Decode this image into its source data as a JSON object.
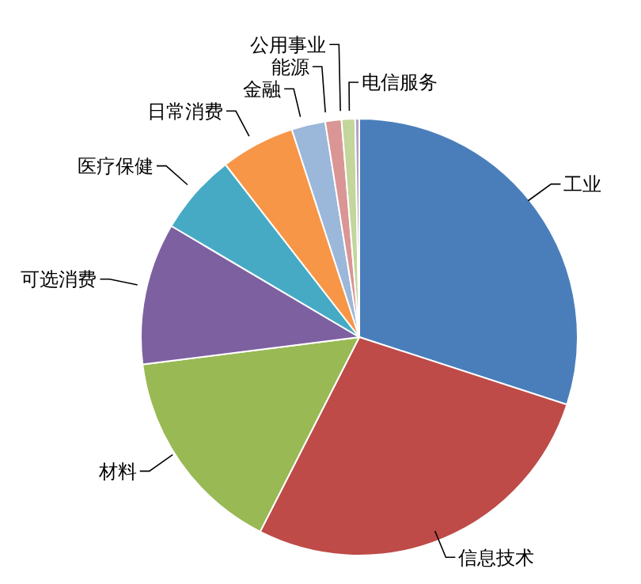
{
  "chart_data": {
    "type": "pie",
    "categories": [
      "工业",
      "信息技术",
      "材料",
      "可选消费",
      "医疗保健",
      "日常消费",
      "金融",
      "能源",
      "公用事业",
      "电信服务"
    ],
    "values": [
      30,
      27.5,
      15.5,
      10.5,
      6,
      5.5,
      2.5,
      1.2,
      1,
      0.3
    ],
    "colors": [
      "#4a7ebb",
      "#be4b48",
      "#98b954",
      "#7d60a0",
      "#46aac5",
      "#f79646",
      "#9bb7d9",
      "#d99694",
      "#c3d69b",
      "#b3a2c7"
    ]
  }
}
